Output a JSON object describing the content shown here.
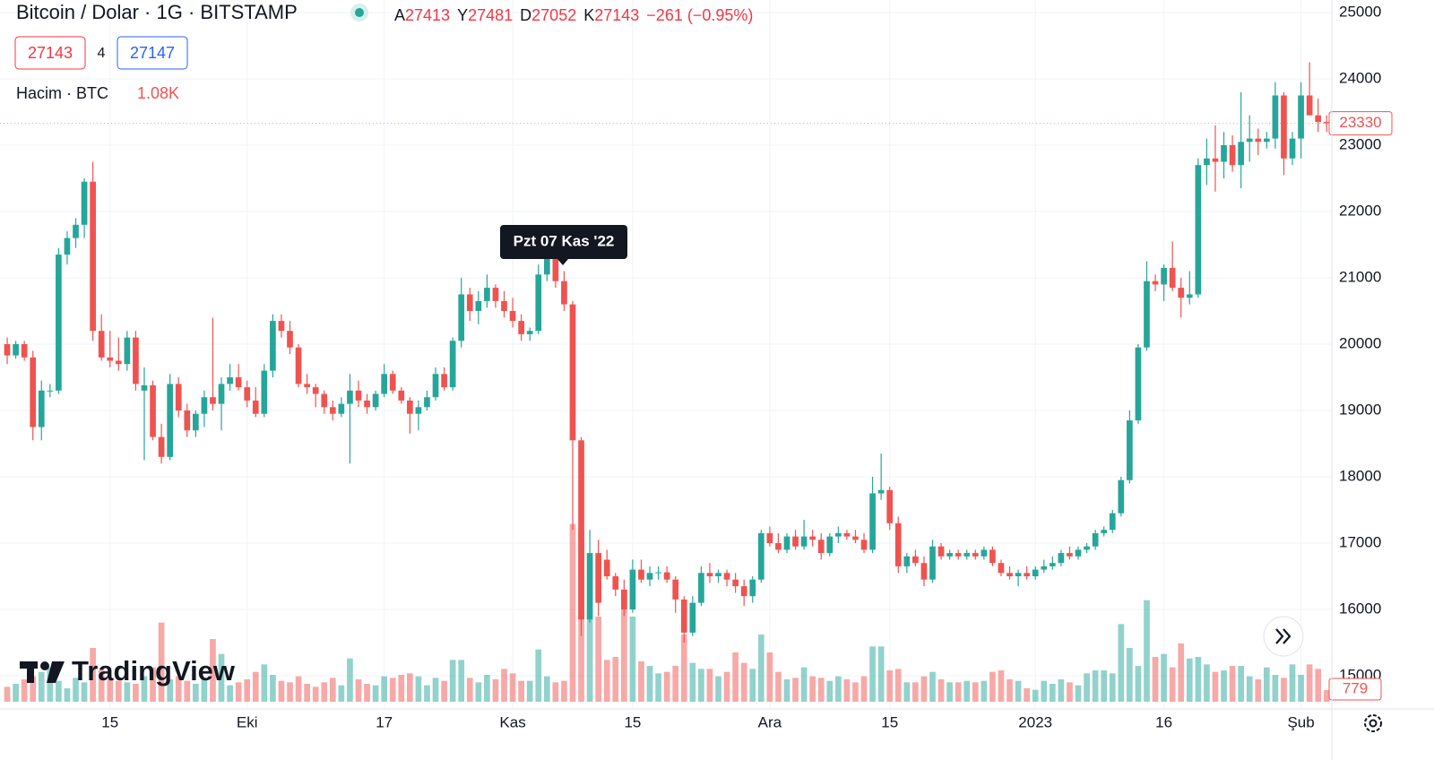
{
  "chart_data": {
    "type": "candlestick",
    "title": "Bitcoin / Dolar · 1G · BITSTAMP",
    "legend_items": [
      {
        "key": "A",
        "value": "27413"
      },
      {
        "key": "Y",
        "value": "27481"
      },
      {
        "key": "D",
        "value": "27052"
      },
      {
        "key": "K",
        "value": "27143"
      }
    ],
    "change": "−261 (−0.95%)",
    "sell_price": "27143",
    "spread": "4",
    "buy_price": "27147",
    "volume_title": "Hacim · BTC",
    "volume_value": "1.08K",
    "tooltip": "Pzt 07 Kas '22",
    "watermark": "TradingView",
    "up_color": "#26a69a",
    "down_color": "#ef5350",
    "ylim": [
      14500,
      25000
    ],
    "yticks": [
      15000,
      16000,
      17000,
      18000,
      19000,
      20000,
      21000,
      22000,
      23000,
      24000,
      25000
    ],
    "xlim": [
      -0.84,
      154.6
    ],
    "xticks": [
      {
        "value": 12,
        "label": "15"
      },
      {
        "value": 28,
        "label": "Eki"
      },
      {
        "value": 44,
        "label": "17"
      },
      {
        "value": 59,
        "label": "Kas"
      },
      {
        "value": 73,
        "label": "15"
      },
      {
        "value": 89,
        "label": "Ara"
      },
      {
        "value": 103,
        "label": "15"
      },
      {
        "value": 120,
        "label": "2023"
      },
      {
        "value": 135,
        "label": "16"
      },
      {
        "value": 151,
        "label": "Şub"
      }
    ],
    "grid": true,
    "vlim": [
      0,
      12000
    ],
    "ohlc": [
      [
        20000,
        20100,
        19700,
        19830
      ],
      [
        19830,
        20050,
        19780,
        20000
      ],
      [
        20000,
        20050,
        19750,
        19800
      ],
      [
        19800,
        19900,
        18550,
        18750
      ],
      [
        18750,
        19450,
        18550,
        19300
      ],
      [
        19300,
        19400,
        19200,
        19300
      ],
      [
        19300,
        21450,
        19250,
        21350
      ],
      [
        21350,
        21700,
        21200,
        21600
      ],
      [
        21600,
        21900,
        21450,
        21800
      ],
      [
        21800,
        22500,
        21600,
        22450
      ],
      [
        22450,
        22750,
        20050,
        20200
      ],
      [
        20200,
        20450,
        19750,
        19800
      ],
      [
        19800,
        20200,
        19650,
        19750
      ],
      [
        19750,
        20100,
        19600,
        19700
      ],
      [
        19700,
        20200,
        19600,
        20100
      ],
      [
        20100,
        20200,
        19300,
        19400
      ],
      [
        19300,
        19650,
        18250,
        19380
      ],
      [
        19380,
        19450,
        18550,
        18600
      ],
      [
        18600,
        18800,
        18200,
        18300
      ],
      [
        18300,
        19550,
        18250,
        19400
      ],
      [
        19400,
        19500,
        18900,
        19000
      ],
      [
        19000,
        19100,
        18600,
        18700
      ],
      [
        18700,
        19000,
        18600,
        18950
      ],
      [
        18950,
        19300,
        18750,
        19200
      ],
      [
        19200,
        20400,
        19000,
        19100
      ],
      [
        19100,
        19500,
        18700,
        19400
      ],
      [
        19400,
        19700,
        19300,
        19500
      ],
      [
        19500,
        19700,
        19300,
        19350
      ],
      [
        19350,
        19450,
        19050,
        19150
      ],
      [
        19150,
        19350,
        18900,
        18950
      ],
      [
        18950,
        19700,
        18900,
        19600
      ],
      [
        19600,
        20450,
        19500,
        20350
      ],
      [
        20350,
        20450,
        20100,
        20200
      ],
      [
        20200,
        20350,
        19850,
        19950
      ],
      [
        19950,
        20000,
        19350,
        19400
      ],
      [
        19400,
        19550,
        19250,
        19350
      ],
      [
        19350,
        19400,
        19050,
        19250
      ],
      [
        19250,
        19300,
        18950,
        19050
      ],
      [
        19050,
        19150,
        18850,
        18950
      ],
      [
        18950,
        19200,
        18900,
        19100
      ],
      [
        19100,
        19550,
        18200,
        19300
      ],
      [
        19300,
        19450,
        19050,
        19150
      ],
      [
        19150,
        19250,
        18950,
        19050
      ],
      [
        19050,
        19300,
        19000,
        19250
      ],
      [
        19250,
        19700,
        19200,
        19550
      ],
      [
        19550,
        19600,
        19250,
        19300
      ],
      [
        19300,
        19350,
        19100,
        19150
      ],
      [
        19150,
        19200,
        18650,
        18950
      ],
      [
        18950,
        19150,
        18700,
        19050
      ],
      [
        19050,
        19300,
        19000,
        19200
      ],
      [
        19200,
        19650,
        19150,
        19550
      ],
      [
        19550,
        19650,
        19300,
        19350
      ],
      [
        19350,
        20100,
        19300,
        20050
      ],
      [
        20050,
        21000,
        19950,
        20750
      ],
      [
        20750,
        20850,
        20350,
        20500
      ],
      [
        20500,
        20800,
        20300,
        20650
      ],
      [
        20650,
        21050,
        20550,
        20850
      ],
      [
        20850,
        20900,
        20550,
        20650
      ],
      [
        20650,
        20800,
        20400,
        20500
      ],
      [
        20500,
        20700,
        20250,
        20350
      ],
      [
        20350,
        20450,
        20050,
        20150
      ],
      [
        20150,
        20250,
        20050,
        20200
      ],
      [
        20200,
        21200,
        20150,
        21050
      ],
      [
        21050,
        21450,
        20950,
        21300
      ],
      [
        21300,
        21450,
        20850,
        20950
      ],
      [
        20950,
        21100,
        20500,
        20600
      ],
      [
        20600,
        20650,
        17200,
        18550
      ],
      [
        18550,
        18600,
        15600,
        15850
      ],
      [
        15850,
        17200,
        15800,
        16850
      ],
      [
        16850,
        17050,
        15900,
        16100
      ],
      [
        16750,
        16900,
        16450,
        16500
      ],
      [
        16500,
        16550,
        16200,
        16300
      ],
      [
        16300,
        16450,
        15900,
        16000
      ],
      [
        16000,
        16750,
        15950,
        16600
      ],
      [
        16600,
        16750,
        16400,
        16450
      ],
      [
        16450,
        16650,
        16350,
        16550
      ],
      [
        16550,
        16650,
        16450,
        16560
      ],
      [
        16560,
        16650,
        16400,
        16450
      ],
      [
        16450,
        16500,
        15950,
        16150
      ],
      [
        16150,
        16200,
        15500,
        15650
      ],
      [
        15650,
        16200,
        15600,
        16100
      ],
      [
        16100,
        16650,
        16050,
        16550
      ],
      [
        16550,
        16700,
        16400,
        16500
      ],
      [
        16500,
        16600,
        16400,
        16550
      ],
      [
        16550,
        16600,
        16350,
        16450
      ],
      [
        16450,
        16550,
        16250,
        16350
      ],
      [
        16350,
        16450,
        16050,
        16200
      ],
      [
        16200,
        16500,
        16100,
        16450
      ],
      [
        16450,
        17200,
        16400,
        17150
      ],
      [
        17150,
        17250,
        16950,
        17000
      ],
      [
        17000,
        17150,
        16850,
        16900
      ],
      [
        16900,
        17150,
        16850,
        17100
      ],
      [
        17100,
        17200,
        16900,
        16950
      ],
      [
        16950,
        17350,
        16900,
        17100
      ],
      [
        17100,
        17200,
        16950,
        17050
      ],
      [
        17050,
        17150,
        16750,
        16850
      ],
      [
        16850,
        17150,
        16800,
        17100
      ],
      [
        17100,
        17250,
        17000,
        17150
      ],
      [
        17150,
        17200,
        17050,
        17100
      ],
      [
        17100,
        17200,
        17000,
        17050
      ],
      [
        17050,
        17150,
        16850,
        16900
      ],
      [
        16900,
        18000,
        16850,
        17750
      ],
      [
        17750,
        18350,
        17650,
        17800
      ],
      [
        17800,
        17850,
        17200,
        17300
      ],
      [
        17300,
        17400,
        16550,
        16650
      ],
      [
        16650,
        16850,
        16550,
        16800
      ],
      [
        16800,
        16900,
        16650,
        16700
      ],
      [
        16700,
        16800,
        16350,
        16450
      ],
      [
        16450,
        17050,
        16400,
        16950
      ],
      [
        16950,
        17000,
        16750,
        16800
      ],
      [
        16800,
        16900,
        16750,
        16850
      ],
      [
        16850,
        16900,
        16750,
        16800
      ],
      [
        16800,
        16900,
        16750,
        16850
      ],
      [
        16850,
        16900,
        16750,
        16800
      ],
      [
        16800,
        16950,
        16750,
        16900
      ],
      [
        16900,
        16950,
        16650,
        16700
      ],
      [
        16700,
        16750,
        16500,
        16550
      ],
      [
        16550,
        16650,
        16450,
        16500
      ],
      [
        16500,
        16600,
        16350,
        16550
      ],
      [
        16550,
        16650,
        16450,
        16500
      ],
      [
        16500,
        16650,
        16450,
        16600
      ],
      [
        16600,
        16750,
        16550,
        16650
      ],
      [
        16650,
        16800,
        16600,
        16700
      ],
      [
        16700,
        16900,
        16650,
        16850
      ],
      [
        16850,
        16950,
        16750,
        16800
      ],
      [
        16800,
        16950,
        16750,
        16900
      ],
      [
        16900,
        17000,
        16850,
        16950
      ],
      [
        16950,
        17200,
        16900,
        17150
      ],
      [
        17150,
        17250,
        17100,
        17200
      ],
      [
        17200,
        17500,
        17150,
        17450
      ],
      [
        17450,
        18000,
        17400,
        17950
      ],
      [
        17950,
        19000,
        17900,
        18850
      ],
      [
        18850,
        20000,
        18800,
        19950
      ],
      [
        19950,
        21250,
        19900,
        20950
      ],
      [
        20950,
        21050,
        20800,
        20900
      ],
      [
        20900,
        21200,
        20650,
        21150
      ],
      [
        21150,
        21550,
        20800,
        20850
      ],
      [
        20850,
        21000,
        20400,
        20700
      ],
      [
        20700,
        21100,
        20600,
        20750
      ],
      [
        20750,
        22800,
        20700,
        22700
      ],
      [
        22700,
        23100,
        22400,
        22800
      ],
      [
        22800,
        23300,
        22300,
        22750
      ],
      [
        22750,
        23200,
        22500,
        23000
      ],
      [
        23000,
        23150,
        22600,
        22700
      ],
      [
        22700,
        23800,
        22350,
        23050
      ],
      [
        23050,
        23450,
        22750,
        23100
      ],
      [
        23100,
        23250,
        22850,
        23050
      ],
      [
        23050,
        23200,
        22950,
        23100
      ],
      [
        23100,
        23950,
        22950,
        23750
      ],
      [
        23750,
        23800,
        22550,
        22800
      ],
      [
        22800,
        23200,
        22700,
        23100
      ],
      [
        23100,
        23950,
        22800,
        23750
      ],
      [
        23750,
        24250,
        23550,
        23450
      ],
      [
        23450,
        23700,
        23200,
        23350
      ],
      [
        23350,
        23450,
        23200,
        23330
      ]
    ],
    "volume": [
      1000,
      1200,
      1500,
      1700,
      2000,
      2300,
      1400,
      900,
      1600,
      1300,
      3600,
      2100,
      1500,
      1400,
      1300,
      1200,
      1700,
      2300,
      5300,
      1500,
      1700,
      1400,
      1200,
      1600,
      4200,
      3200,
      1100,
      1300,
      1500,
      2000,
      2500,
      1800,
      1400,
      1300,
      1700,
      1200,
      1000,
      1300,
      1600,
      1100,
      2900,
      1500,
      1200,
      1100,
      1700,
      1600,
      1800,
      1900,
      1700,
      1100,
      1600,
      1400,
      2800,
      2800,
      1600,
      1300,
      1800,
      1500,
      2200,
      1900,
      1400,
      1400,
      3500,
      1700,
      1300,
      1400,
      11900,
      11500,
      5600,
      5700,
      2800,
      3000,
      7500,
      5700,
      2700,
      2400,
      1900,
      2000,
      2400,
      4500,
      2600,
      2200,
      2200,
      1700,
      2000,
      3300,
      2600,
      2200,
      4500,
      3300,
      2000,
      1500,
      1600,
      2300,
      1700,
      1600,
      1400,
      1700,
      1500,
      1300,
      1700,
      3700,
      3700,
      2100,
      2200,
      1300,
      1300,
      1700,
      2000,
      1500,
      1300,
      1300,
      1400,
      1300,
      1400,
      2000,
      2100,
      1500,
      1400,
      900,
      800,
      1400,
      1200,
      1500,
      1300,
      1100,
      1900,
      2100,
      2100,
      1900,
      5200,
      3600,
      2400,
      6800,
      3000,
      3200,
      2300,
      3900,
      2900,
      3000,
      2500,
      2000,
      2100,
      2400,
      2400,
      1700,
      1500,
      2300,
      1800,
      1600,
      2500,
      1800,
      2500,
      2200,
      779
    ]
  }
}
